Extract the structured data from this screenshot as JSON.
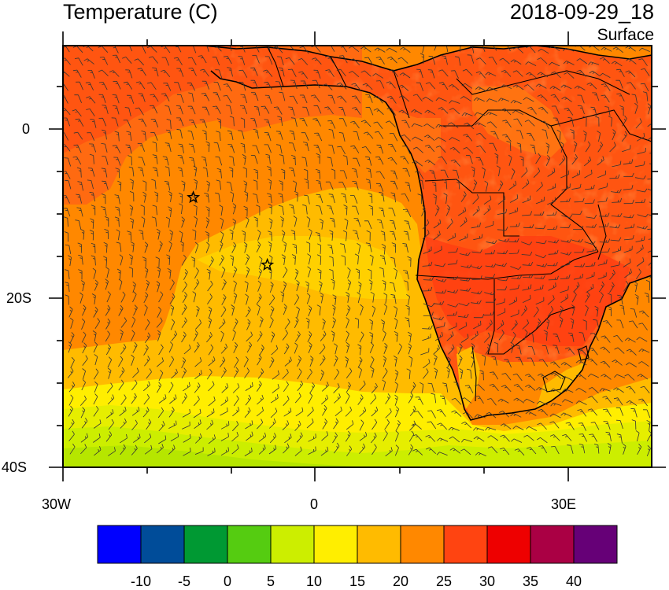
{
  "title_left": "Temperature (C)",
  "title_right": "2018-09-29_18",
  "subtitle_right": "Surface",
  "y_labels": [
    "0",
    "20S",
    "40S"
  ],
  "x_labels": [
    "30W",
    "0",
    "30E"
  ],
  "colorbar": {
    "colors": [
      "#0000ff",
      "#004c99",
      "#009933",
      "#55cc11",
      "#ccee00",
      "#ffee00",
      "#ffbb00",
      "#ff8800",
      "#ff4411",
      "#ee0000",
      "#aa0044",
      "#660077"
    ],
    "labels": [
      "-10",
      "-5",
      "0",
      "5",
      "10",
      "15",
      "20",
      "25",
      "30",
      "35",
      "40"
    ]
  },
  "markers": [
    {
      "name": "star",
      "lon": -14.5,
      "lat": -8
    },
    {
      "name": "star",
      "lon": -5.7,
      "lat": -16
    }
  ],
  "domain": {
    "lon_range": [
      -30,
      40
    ],
    "lat_range": [
      -40,
      10
    ]
  }
}
